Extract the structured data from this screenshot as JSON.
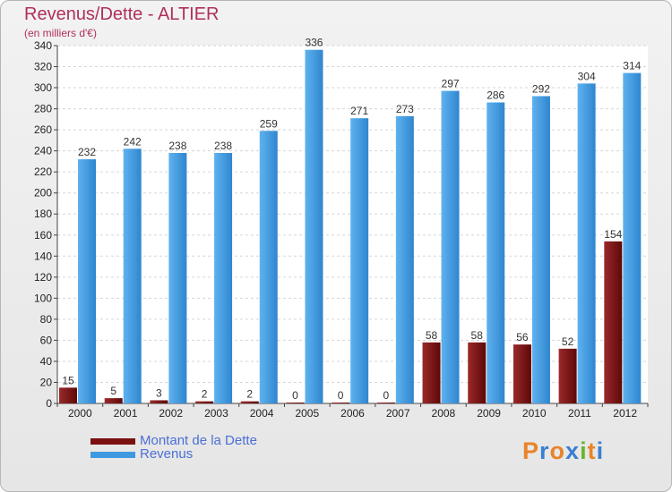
{
  "chart_data": {
    "type": "bar",
    "title": "Revenus/Dette - ALTIER",
    "subtitle": "(en milliers d'€)",
    "categories": [
      "2000",
      "2001",
      "2002",
      "2003",
      "2004",
      "2005",
      "2006",
      "2007",
      "2008",
      "2009",
      "2010",
      "2011",
      "2012"
    ],
    "series": [
      {
        "name": "Montant de la Dette",
        "color": "#7a1010",
        "values": [
          15,
          5,
          3,
          2,
          2,
          0,
          0,
          0,
          58,
          58,
          56,
          52,
          154
        ]
      },
      {
        "name": "Revenus",
        "color": "#3f99e0",
        "values": [
          232,
          242,
          238,
          238,
          259,
          336,
          271,
          273,
          297,
          286,
          292,
          304,
          314
        ]
      }
    ],
    "ylim": [
      0,
      340
    ],
    "yticks": [
      0,
      20,
      40,
      60,
      80,
      100,
      120,
      140,
      160,
      180,
      200,
      220,
      240,
      260,
      280,
      300,
      320,
      340
    ],
    "grid": true,
    "legend": "bottom-left"
  },
  "branding": {
    "logo_letters": [
      "P",
      "r",
      "o",
      "x",
      "i",
      "t",
      "i"
    ],
    "logo_colors": [
      "#e8842a",
      "#3a7fd0",
      "#e8842a",
      "#3a7fd0",
      "#6ab42d",
      "#e8842a",
      "#3a7fd0"
    ]
  }
}
